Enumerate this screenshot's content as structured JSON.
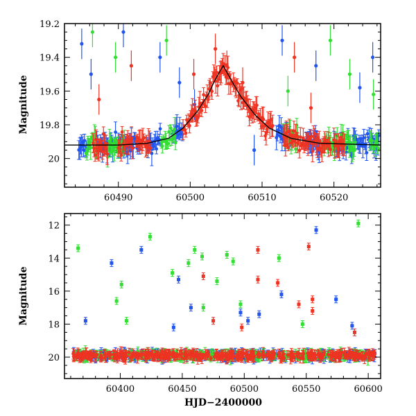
{
  "chart_data": [
    {
      "type": "scatter",
      "panel": "top",
      "xlabel": "",
      "ylabel": "Magnitude",
      "xlim": [
        60482.5,
        60526.5
      ],
      "ylim": [
        20.17,
        19.2
      ],
      "y_inverted": true,
      "x_ticks": [
        60490,
        60500,
        60510,
        60520
      ],
      "y_ticks": [
        19.2,
        19.4,
        19.6,
        19.8,
        20
      ],
      "model_curve": {
        "color": "#000000",
        "baseline": 19.92,
        "peak_x": 60504.6,
        "peak_y": 19.45,
        "points": [
          [
            60482.5,
            19.92
          ],
          [
            60490,
            19.92
          ],
          [
            60494,
            19.91
          ],
          [
            60497,
            19.88
          ],
          [
            60499,
            19.82
          ],
          [
            60501,
            19.72
          ],
          [
            60502.5,
            19.62
          ],
          [
            60503.5,
            19.53
          ],
          [
            60504.6,
            19.45
          ],
          [
            60505.5,
            19.52
          ],
          [
            60507,
            19.63
          ],
          [
            60509,
            19.74
          ],
          [
            60511,
            19.82
          ],
          [
            60514,
            19.88
          ],
          [
            60518,
            19.91
          ],
          [
            60526.5,
            19.92
          ]
        ]
      },
      "series": [
        {
          "color": "#2255ee",
          "x_ranges": [
            [
              60484.5,
              60486
            ],
            [
              60487,
              60493
            ],
            [
              60494,
              60496
            ],
            [
              60497.5,
              60499
            ],
            [
              60512,
              60514
            ],
            [
              60516,
              60518
            ],
            [
              60520,
              60526.3
            ]
          ],
          "points": [
            [
              60484.9,
              19.32
            ],
            [
              60486.2,
              19.5
            ],
            [
              60490.7,
              19.25
            ],
            [
              60495.8,
              19.4
            ],
            [
              60498.5,
              19.55
            ],
            [
              60500.6,
              19.68
            ],
            [
              60508.9,
              19.95
            ],
            [
              60512.8,
              19.3
            ],
            [
              60517.5,
              19.45
            ],
            [
              60523.6,
              19.58
            ],
            [
              60525.4,
              19.4
            ]
          ]
        },
        {
          "color": "#33dd33",
          "x_ranges": [
            [
              60485.5,
              60487
            ],
            [
              60488.5,
              60491
            ],
            [
              60496,
              60498
            ],
            [
              60513,
              60515
            ],
            [
              60518.5,
              60520.5
            ],
            [
              60521,
              60523
            ],
            [
              60525,
              60526.2
            ]
          ],
          "points": [
            [
              60486.4,
              19.25
            ],
            [
              60489.6,
              19.4
            ],
            [
              60496.7,
              19.3
            ],
            [
              60513.6,
              19.6
            ],
            [
              60519.5,
              19.3
            ],
            [
              60522.2,
              19.5
            ],
            [
              60525.5,
              19.62
            ]
          ]
        },
        {
          "color": "#ee3322",
          "x_ranges": [
            [
              60486.5,
              60488.5
            ],
            [
              60490,
              60492
            ],
            [
              60492.5,
              60494.5
            ],
            [
              60499,
              60511.5
            ],
            [
              60513,
              60519.5
            ],
            [
              60520,
              60521.5
            ]
          ],
          "points": [
            [
              60487.3,
              19.65
            ],
            [
              60491.8,
              19.45
            ],
            [
              60500.5,
              19.5
            ],
            [
              60503.5,
              19.35
            ],
            [
              60505.1,
              19.45
            ],
            [
              60507.3,
              19.55
            ],
            [
              60514.5,
              19.4
            ],
            [
              60516.8,
              19.7
            ]
          ]
        }
      ]
    },
    {
      "type": "scatter",
      "panel": "bottom",
      "xlabel": "HJD−2400000",
      "ylabel": "Magnitude",
      "xlim": [
        60355,
        60610
      ],
      "ylim": [
        21.3,
        11.3
      ],
      "y_inverted": true,
      "x_ticks": [
        60400,
        60450,
        60500,
        60550,
        60600
      ],
      "y_ticks": [
        12,
        14,
        16,
        18,
        20
      ],
      "baseline": 19.9,
      "series": [
        {
          "color": "#2255ee",
          "outliers": [
            [
              60393,
              14.3
            ],
            [
              60417,
              13.5
            ],
            [
              60447,
              15.3
            ],
            [
              60457,
              17.0
            ],
            [
              60497,
              17.3
            ],
            [
              60503,
              17.8
            ],
            [
              60530,
              16.2
            ],
            [
              60558,
              12.3
            ],
            [
              60574,
              16.5
            ],
            [
              60372,
              17.8
            ],
            [
              60443,
              18.2
            ],
            [
              60587,
              18.1
            ],
            [
              60512,
              17.4
            ]
          ]
        },
        {
          "color": "#33dd33",
          "outliers": [
            [
              60366,
              13.4
            ],
            [
              60397,
              16.6
            ],
            [
              60401,
              15.6
            ],
            [
              60424,
              12.7
            ],
            [
              60442,
              14.9
            ],
            [
              60455,
              14.3
            ],
            [
              60460,
              13.5
            ],
            [
              60466,
              13.9
            ],
            [
              60478,
              15.4
            ],
            [
              60486,
              13.8
            ],
            [
              60491,
              14.2
            ],
            [
              60528,
              14.0
            ],
            [
              60592,
              11.9
            ],
            [
              60405,
              17.8
            ],
            [
              60467,
              17.0
            ],
            [
              60497,
              16.8
            ],
            [
              60547,
              18.0
            ]
          ]
        },
        {
          "color": "#ee3322",
          "outliers": [
            [
              60467,
              15.1
            ],
            [
              60511,
              13.5
            ],
            [
              60511,
              15.3
            ],
            [
              60527,
              15.5
            ],
            [
              60544,
              16.8
            ],
            [
              60552,
              13.3
            ],
            [
              60555,
              16.5
            ],
            [
              60555,
              17.2
            ],
            [
              60589,
              18.5
            ],
            [
              60475,
              17.8
            ],
            [
              60498,
              18.2
            ]
          ]
        }
      ]
    }
  ]
}
